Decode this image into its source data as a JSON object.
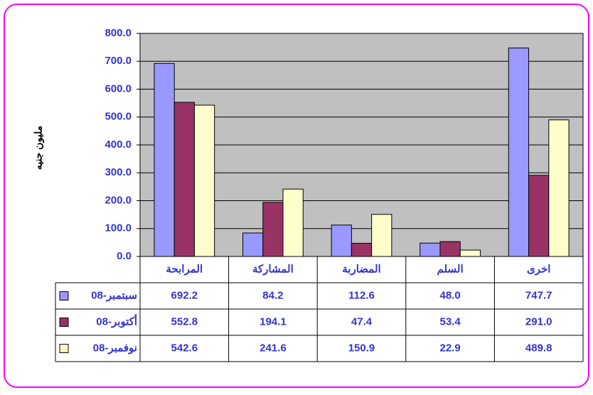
{
  "chart_data": {
    "type": "bar",
    "y_label": "مليون جنيه",
    "categories": [
      "المرابحة",
      "المشاركة",
      "المضاربة",
      "السلم",
      "اخرى"
    ],
    "series": [
      {
        "name": "سبتمبر-08",
        "color": "#9999ff",
        "values": [
          692.2,
          84.2,
          112.6,
          48,
          747.7
        ],
        "value_labels": [
          "692.2",
          "84.2",
          "112.6",
          "48.0",
          "747.7"
        ]
      },
      {
        "name": "أكتوبر-08",
        "color": "#993366",
        "values": [
          552.8,
          194.1,
          47.4,
          53.4,
          291
        ],
        "value_labels": [
          "552.8",
          "194.1",
          "47.4",
          "53.4",
          "291.0"
        ]
      },
      {
        "name": "نوفمبر-08",
        "color": "#ffffcc",
        "values": [
          542.6,
          241.6,
          150.9,
          22.9,
          489.8
        ],
        "value_labels": [
          "542.6",
          "241.6",
          "150.9",
          "22.9",
          "489.8"
        ]
      }
    ],
    "ylim": [
      0,
      800
    ],
    "yticks": [
      {
        "value": 0,
        "label": "0.0"
      },
      {
        "value": 100,
        "label": "100.0"
      },
      {
        "value": 200,
        "label": "200.0"
      },
      {
        "value": 300,
        "label": "300.0"
      },
      {
        "value": 400,
        "label": "400.0"
      },
      {
        "value": 500,
        "label": "500.0"
      },
      {
        "value": 600,
        "label": "600.0"
      },
      {
        "value": 700,
        "label": "700.0"
      },
      {
        "value": 800,
        "label": "800.0"
      }
    ],
    "grid": true,
    "plot_background": "#c0c0c0",
    "data_table": true
  }
}
